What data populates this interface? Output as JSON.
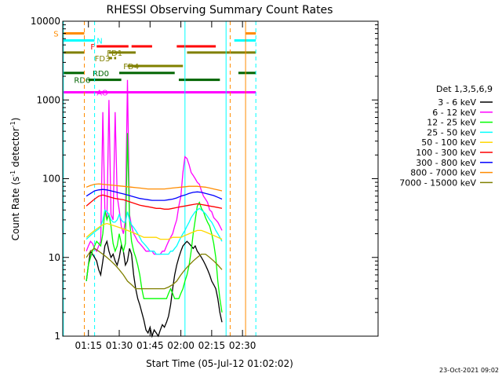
{
  "chart_data": {
    "type": "line",
    "title": "RHESSI Observing Summary Count Rates",
    "xlabel": "Start Time (05-Jul-12 01:02:02)",
    "ylabel_main": "Count Rate (s",
    "ylabel_exp1": "-1",
    "ylabel_mid": " detector",
    "ylabel_exp2": "-1",
    "ylabel_end": ")",
    "timestamp": "23-Oct-2021 09:02",
    "y_scale": "log",
    "ylim": [
      1,
      10000
    ],
    "xlim_minutes": [
      1.5,
      155
    ],
    "x_ticks": [
      {
        "m": 14.0,
        "label": "01:15"
      },
      {
        "m": 29.0,
        "label": "01:30"
      },
      {
        "m": 44.0,
        "label": "01:45"
      },
      {
        "m": 59.0,
        "label": "02:00"
      },
      {
        "m": 74.0,
        "label": "02:15"
      },
      {
        "m": 89.0,
        "label": "02:30"
      }
    ],
    "y_ticks": [
      {
        "v": 1,
        "label": "1"
      },
      {
        "v": 10,
        "label": "10"
      },
      {
        "v": 100,
        "label": "100"
      },
      {
        "v": 1000,
        "label": "1000"
      },
      {
        "v": 10000,
        "label": "10000"
      }
    ],
    "legend_title": "Det 1,3,5,6,9",
    "series": [
      {
        "name": "3 - 6 keV",
        "color": "#000000",
        "x": [
          13,
          14,
          15,
          16,
          17,
          18,
          19,
          20,
          21,
          22,
          23,
          24,
          25,
          26,
          27,
          28,
          29,
          30,
          31,
          32,
          33,
          34,
          35,
          36,
          37,
          38,
          39,
          40,
          41,
          42,
          43,
          44,
          45,
          46,
          47,
          48,
          49,
          50,
          51,
          52,
          53,
          54,
          55,
          56,
          57,
          58,
          59,
          60,
          61,
          62,
          63,
          64,
          65,
          66,
          67,
          68,
          69,
          70,
          71,
          72,
          73,
          74,
          75,
          76,
          77,
          78,
          79
        ],
        "y": [
          5,
          8,
          12,
          11,
          10,
          9,
          7,
          6,
          9,
          14,
          16,
          12,
          10,
          11,
          9,
          8,
          10,
          14,
          12,
          8,
          9,
          13,
          11,
          6,
          4,
          3,
          2.5,
          2,
          1.6,
          1.2,
          1.1,
          1.3,
          1,
          1.2,
          1.1,
          1,
          1.2,
          1.4,
          1.3,
          1.5,
          1.8,
          2.5,
          4,
          6,
          8,
          10,
          12,
          14,
          15,
          16,
          15,
          14,
          13,
          14,
          12,
          11,
          10,
          9,
          8,
          7,
          6,
          5,
          4.5,
          4,
          3,
          2,
          1.5
        ]
      },
      {
        "name": "6 - 12 keV",
        "color": "#ff00ff",
        "x": [
          13,
          14,
          15,
          16,
          17,
          18,
          19,
          20,
          21,
          22,
          23,
          24,
          25,
          26,
          27,
          28,
          29,
          30,
          31,
          32,
          33,
          34,
          35,
          36,
          37,
          38,
          39,
          40,
          41,
          42,
          43,
          44,
          45,
          46,
          47,
          48,
          49,
          50,
          51,
          52,
          53,
          54,
          55,
          56,
          57,
          58,
          59,
          60,
          61,
          62,
          63,
          64,
          65,
          66,
          67,
          68,
          69,
          70,
          71,
          72,
          73,
          74,
          75,
          76,
          77,
          78,
          79
        ],
        "y": [
          12,
          14,
          16,
          15,
          13,
          12,
          14,
          16,
          700,
          40,
          30,
          1000,
          35,
          30,
          700,
          60,
          40,
          25,
          20,
          30,
          1800,
          35,
          25,
          20,
          18,
          16,
          15,
          14,
          13,
          12,
          12,
          12,
          12,
          11,
          11,
          11,
          11,
          12,
          12,
          14,
          16,
          18,
          20,
          25,
          30,
          45,
          60,
          120,
          190,
          180,
          150,
          120,
          110,
          100,
          90,
          85,
          70,
          60,
          55,
          50,
          40,
          38,
          32,
          30,
          28,
          25,
          22
        ]
      },
      {
        "name": "12 - 25 keV",
        "color": "#00ff00",
        "x": [
          13,
          14,
          15,
          16,
          17,
          18,
          19,
          20,
          21,
          22,
          23,
          24,
          25,
          26,
          27,
          28,
          29,
          30,
          31,
          32,
          33,
          34,
          35,
          36,
          37,
          38,
          39,
          40,
          41,
          42,
          43,
          44,
          45,
          46,
          47,
          48,
          49,
          50,
          51,
          52,
          53,
          54,
          55,
          56,
          57,
          58,
          59,
          60,
          61,
          62,
          63,
          64,
          65,
          66,
          67,
          68,
          69,
          70,
          71,
          72,
          73,
          74,
          75,
          76,
          77,
          78,
          79
        ],
        "y": [
          5,
          8,
          10,
          12,
          14,
          16,
          15,
          14,
          20,
          40,
          30,
          35,
          25,
          15,
          12,
          14,
          20,
          15,
          12,
          15,
          380,
          30,
          16,
          12,
          10,
          8,
          6,
          4,
          3,
          3,
          3,
          3,
          3,
          3,
          3,
          3,
          3,
          3,
          3,
          3,
          3.5,
          4,
          3.5,
          3,
          3,
          3,
          3.5,
          4,
          5,
          6,
          8,
          12,
          20,
          30,
          45,
          50,
          42,
          38,
          32,
          28,
          25,
          20,
          15,
          10,
          5,
          3,
          2
        ]
      },
      {
        "name": "25 - 50 keV",
        "color": "#00ffff",
        "x": [
          13,
          14,
          15,
          16,
          17,
          18,
          19,
          20,
          21,
          22,
          23,
          24,
          25,
          26,
          27,
          28,
          29,
          30,
          31,
          32,
          33,
          34,
          35,
          36,
          37,
          38,
          39,
          40,
          41,
          42,
          43,
          44,
          45,
          46,
          47,
          48,
          49,
          50,
          51,
          52,
          53,
          54,
          55,
          56,
          57,
          58,
          59,
          60,
          61,
          62,
          63,
          64,
          65,
          66,
          67,
          68,
          69,
          70,
          71,
          72,
          73,
          74,
          75,
          76,
          77,
          78,
          79
        ],
        "y": [
          17,
          18,
          19,
          20,
          21,
          22,
          23,
          25,
          30,
          40,
          38,
          35,
          30,
          28,
          28,
          30,
          35,
          30,
          28,
          28,
          38,
          30,
          26,
          24,
          22,
          20,
          18,
          16,
          15,
          14,
          13,
          12,
          12,
          12,
          11,
          11,
          11,
          11,
          11,
          11,
          11,
          12,
          12,
          13,
          14,
          16,
          18,
          20,
          22,
          25,
          28,
          32,
          35,
          38,
          40,
          42,
          40,
          38,
          36,
          33,
          30,
          28,
          25,
          22,
          20,
          18,
          16
        ]
      },
      {
        "name": "50 - 100 keV",
        "color": "#ffd700",
        "x": [
          13,
          15,
          17,
          19,
          21,
          23,
          25,
          27,
          29,
          31,
          33,
          35,
          37,
          39,
          41,
          43,
          45,
          47,
          49,
          51,
          53,
          55,
          57,
          59,
          61,
          63,
          65,
          67,
          69,
          71,
          73,
          75,
          77,
          79
        ],
        "y": [
          18,
          20,
          22,
          24,
          26,
          27,
          26,
          25,
          24,
          23,
          22,
          21,
          20,
          19,
          18,
          18,
          18,
          18,
          17,
          17,
          17,
          18,
          18,
          18,
          19,
          20,
          21,
          22,
          22,
          21,
          20,
          19,
          18,
          17
        ]
      },
      {
        "name": "100 - 300 keV",
        "color": "#ff0000",
        "x": [
          13,
          15,
          17,
          19,
          21,
          23,
          25,
          27,
          29,
          31,
          33,
          35,
          37,
          39,
          41,
          43,
          45,
          47,
          49,
          51,
          53,
          55,
          57,
          59,
          61,
          63,
          65,
          67,
          69,
          71,
          73,
          75,
          77,
          79
        ],
        "y": [
          45,
          50,
          55,
          60,
          62,
          60,
          58,
          56,
          55,
          54,
          52,
          50,
          48,
          46,
          45,
          44,
          43,
          42,
          42,
          41,
          41,
          42,
          43,
          44,
          45,
          46,
          47,
          48,
          47,
          46,
          45,
          44,
          43,
          42
        ]
      },
      {
        "name": "300 - 800 keV",
        "color": "#0000ff",
        "x": [
          13,
          15,
          17,
          19,
          21,
          23,
          25,
          27,
          29,
          31,
          33,
          35,
          37,
          39,
          41,
          43,
          45,
          47,
          49,
          51,
          53,
          55,
          57,
          59,
          61,
          63,
          65,
          67,
          69,
          71,
          73,
          75,
          77,
          79
        ],
        "y": [
          60,
          65,
          70,
          72,
          73,
          72,
          70,
          68,
          66,
          64,
          62,
          60,
          58,
          56,
          55,
          54,
          53,
          53,
          53,
          53,
          54,
          55,
          57,
          60,
          62,
          65,
          67,
          68,
          67,
          65,
          63,
          61,
          58,
          55
        ]
      },
      {
        "name": "800 - 7000 keV",
        "color": "#ff8c00",
        "x": [
          13,
          15,
          17,
          19,
          21,
          23,
          25,
          27,
          29,
          31,
          33,
          35,
          37,
          39,
          41,
          43,
          45,
          47,
          49,
          51,
          53,
          55,
          57,
          59,
          61,
          63,
          65,
          67,
          69,
          71,
          73,
          75,
          77,
          79
        ],
        "y": [
          78,
          82,
          85,
          86,
          85,
          84,
          83,
          82,
          81,
          80,
          79,
          78,
          77,
          76,
          75,
          74,
          74,
          74,
          74,
          74,
          75,
          76,
          77,
          78,
          79,
          80,
          80,
          80,
          79,
          78,
          76,
          74,
          72,
          70
        ]
      },
      {
        "name": "7000 - 15000 keV",
        "color": "#808000",
        "x": [
          13,
          15,
          17,
          19,
          21,
          23,
          25,
          27,
          29,
          31,
          33,
          35,
          37,
          39,
          41,
          43,
          45,
          47,
          49,
          51,
          53,
          55,
          57,
          59,
          61,
          63,
          65,
          67,
          69,
          71,
          73,
          75,
          77,
          79
        ],
        "y": [
          10,
          12,
          13,
          12,
          11,
          10,
          9,
          8,
          7,
          6,
          5,
          4.5,
          4,
          4,
          4,
          4,
          4,
          4,
          4,
          4,
          4.2,
          4.5,
          5,
          6,
          7,
          8,
          9,
          10,
          11,
          11,
          10,
          9,
          8,
          7
        ]
      }
    ],
    "flag_bars": [
      {
        "label": "S",
        "color": "#ff8c00",
        "y": 7000,
        "segments": [
          [
            1.5,
            12
          ]
        ],
        "label_m": -3
      },
      {
        "label": "",
        "color": "#ff8c00",
        "y": 7000,
        "segments": [
          [
            90.5,
            95.5
          ]
        ]
      },
      {
        "label": "N",
        "color": "#00ffff",
        "y": 5700,
        "segments": [
          [
            1.5,
            17
          ]
        ],
        "label_m": 18
      },
      {
        "label": "",
        "color": "#00ffff",
        "y": 5700,
        "segments": [
          [
            85,
            95.5
          ]
        ]
      },
      {
        "label": "F",
        "color": "#ff0000",
        "y": 4800,
        "segments": [
          [
            18,
            33.5
          ],
          [
            35,
            45
          ],
          [
            57,
            76
          ]
        ],
        "label_m": 15
      },
      {
        "label": "FD1",
        "color": "#808000",
        "y": 4000,
        "segments": [
          [
            24,
            37
          ]
        ],
        "label_m": 23
      },
      {
        "label": "",
        "color": "#808000",
        "y": 4000,
        "segments": [
          [
            1.5,
            12
          ],
          [
            62,
            95.5
          ]
        ]
      },
      {
        "label": "FD3",
        "color": "#808000",
        "y": 3400,
        "segments": [
          [
            24,
            25.5
          ],
          [
            26.5,
            27.5
          ]
        ],
        "label_m": 17
      },
      {
        "label": "FD4",
        "color": "#808000",
        "y": 2700,
        "segments": [
          [
            33,
            60
          ]
        ],
        "label_m": 31
      },
      {
        "label": "RD0",
        "color": "#006400",
        "y": 2200,
        "segments": [
          [
            1.5,
            12
          ],
          [
            29,
            56
          ],
          [
            87,
            95.5
          ]
        ],
        "label_m": 16
      },
      {
        "label": "RD6",
        "color": "#006400",
        "y": 1800,
        "segments": [
          [
            14,
            30
          ],
          [
            58,
            78
          ]
        ],
        "label_m": 7
      },
      {
        "label": "AO",
        "color": "#ff00ff",
        "y": 1250,
        "segments": [
          [
            1.5,
            95.5
          ]
        ],
        "label_m": 18
      }
    ],
    "vlines": [
      {
        "m": 1.8,
        "color": "#00ffff",
        "style": "solid"
      },
      {
        "m": 12,
        "color": "#ff8c00",
        "style": "dashed"
      },
      {
        "m": 17,
        "color": "#00ffff",
        "style": "dashed"
      },
      {
        "m": 61,
        "color": "#00ffff",
        "style": "solid"
      },
      {
        "m": 81,
        "color": "#00ffff",
        "style": "solid"
      },
      {
        "m": 83,
        "color": "#ff8c00",
        "style": "dashed"
      },
      {
        "m": 90.5,
        "color": "#ff8c00",
        "style": "solid"
      },
      {
        "m": 95.5,
        "color": "#00ffff",
        "style": "dashed"
      }
    ]
  }
}
